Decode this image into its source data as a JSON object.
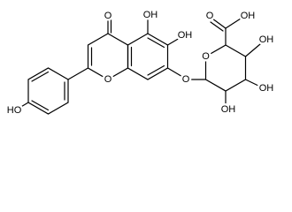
{
  "labels": [
    "O",
    "OH",
    "OH",
    "O",
    "O",
    "O",
    "O",
    "OH",
    "OH",
    "OH",
    "OH",
    "HO"
  ]
}
